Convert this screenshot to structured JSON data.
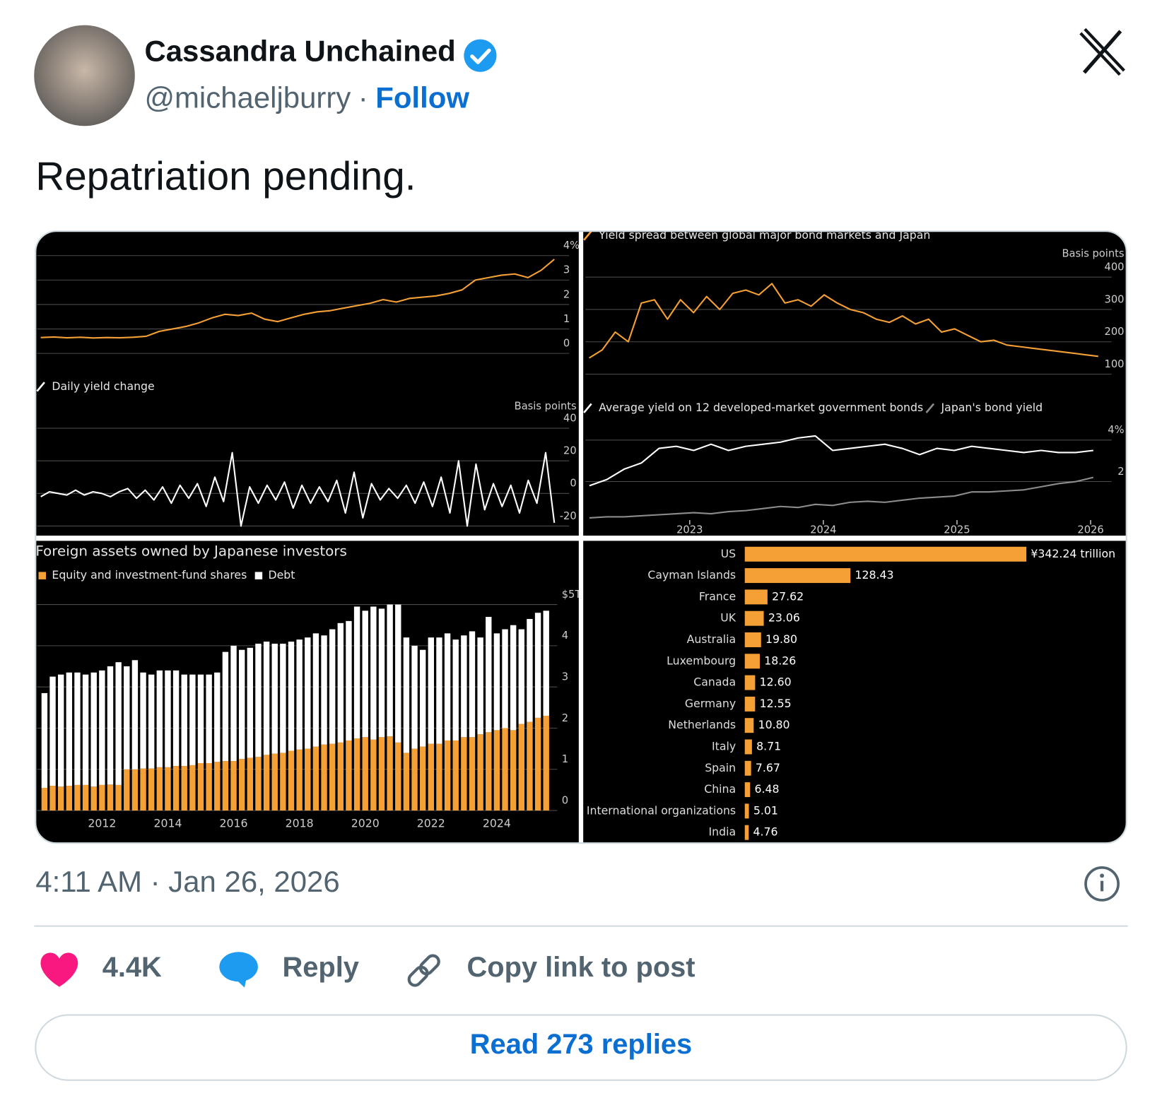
{
  "post": {
    "author": "Cassandra Unchained",
    "handle": "@michaeljburry",
    "separator": "·",
    "follow": "Follow",
    "text": "Repatriation pending.",
    "timestamp": "4:11 AM · Jan 26, 2026",
    "likes": "4.4K",
    "reply": "Reply",
    "copy_link": "Copy link to post",
    "read_replies": "Read 273 replies"
  },
  "chart_data": [
    {
      "type": "line",
      "color": "#f5a035",
      "values": [
        0.65,
        0.67,
        0.64,
        0.66,
        0.63,
        0.65,
        0.64,
        0.66,
        0.7,
        0.9,
        1.0,
        1.1,
        1.25,
        1.45,
        1.6,
        1.55,
        1.65,
        1.4,
        1.3,
        1.45,
        1.6,
        1.7,
        1.75,
        1.85,
        1.95,
        2.05,
        2.2,
        2.1,
        2.25,
        2.3,
        2.35,
        2.45,
        2.6,
        3.0,
        3.1,
        3.2,
        3.25,
        3.1,
        3.4,
        3.85
      ],
      "ylim": [
        -0.5,
        5
      ],
      "yticks": [
        0,
        1,
        2,
        3,
        {
          "value": 4,
          "label": "4%"
        }
      ],
      "grid": true
    },
    {
      "type": "line",
      "title": "Daily yield change",
      "y_label": "Basis points",
      "color": "#ffffff",
      "values": [
        -2,
        1,
        0,
        -1,
        2,
        -1,
        1,
        0,
        -2,
        1,
        3,
        -3,
        2,
        -4,
        4,
        -6,
        5,
        -3,
        6,
        -8,
        10,
        -5,
        25,
        -20,
        4,
        -6,
        5,
        -4,
        7,
        -9,
        5,
        -6,
        4,
        -5,
        8,
        -12,
        13,
        -15,
        6,
        -4,
        3,
        -3,
        5,
        -6,
        7,
        -8,
        10,
        -12,
        20,
        -20,
        18,
        -10,
        6,
        -8,
        5,
        -12,
        8,
        -6,
        25,
        -18
      ],
      "ylim": [
        -26,
        56
      ],
      "yticks": [
        -20,
        0,
        20,
        40
      ],
      "grid": true
    },
    {
      "type": "line",
      "title": "Yield spread between global major bond markets and Japan",
      "y_label": "Basis points",
      "color": "#f5a035",
      "values": [
        150,
        175,
        230,
        200,
        320,
        330,
        270,
        330,
        290,
        340,
        300,
        350,
        360,
        345,
        380,
        320,
        330,
        310,
        345,
        320,
        300,
        290,
        270,
        260,
        280,
        255,
        270,
        230,
        240,
        220,
        200,
        205,
        190,
        185,
        180,
        175,
        170,
        165,
        160,
        155
      ],
      "ylim": [
        70,
        540
      ],
      "yticks": [
        100,
        200,
        300,
        400
      ],
      "grid": true
    },
    {
      "type": "line",
      "x": [
        2022.25,
        2022.38,
        2022.51,
        2022.64,
        2022.77,
        2022.9,
        2023.03,
        2023.16,
        2023.29,
        2023.42,
        2023.55,
        2023.68,
        2023.81,
        2023.94,
        2024.07,
        2024.2,
        2024.33,
        2024.46,
        2024.59,
        2024.72,
        2024.85,
        2024.98,
        2025.11,
        2025.24,
        2025.37,
        2025.5,
        2025.63,
        2025.76,
        2025.89,
        2026.02
      ],
      "series": [
        {
          "name": "Average yield on 12 developed-market government bonds",
          "color": "#ffffff",
          "values": [
            1.8,
            2.1,
            2.6,
            2.9,
            3.6,
            3.7,
            3.5,
            3.8,
            3.5,
            3.7,
            3.8,
            3.9,
            4.1,
            4.2,
            3.5,
            3.6,
            3.7,
            3.8,
            3.6,
            3.3,
            3.6,
            3.5,
            3.7,
            3.6,
            3.5,
            3.4,
            3.5,
            3.4,
            3.4,
            3.5
          ]
        },
        {
          "name": "Japan's bond yield",
          "color": "#8c8c8c",
          "values": [
            0.25,
            0.3,
            0.3,
            0.35,
            0.4,
            0.45,
            0.5,
            0.45,
            0.55,
            0.6,
            0.7,
            0.8,
            0.75,
            0.9,
            0.85,
            1.0,
            1.05,
            1.0,
            1.1,
            1.2,
            1.25,
            1.3,
            1.5,
            1.5,
            1.55,
            1.6,
            1.75,
            1.9,
            2.0,
            2.2
          ]
        }
      ],
      "xlim": [
        2022.22,
        2026.24
      ],
      "xticks": [
        2023,
        2024,
        2025,
        2026
      ],
      "ylim": [
        -0.6,
        5.9
      ],
      "yticks": [
        2,
        {
          "value": 4,
          "label": "4%"
        }
      ],
      "grid": true
    },
    {
      "type": "bar",
      "stacked": true,
      "title": "Foreign assets owned by Japanese investors",
      "categories": [
        null,
        null,
        null,
        null,
        null,
        null,
        null,
        "2012",
        null,
        null,
        null,
        null,
        null,
        null,
        null,
        "2014",
        null,
        null,
        null,
        null,
        null,
        null,
        null,
        "2016",
        null,
        null,
        null,
        null,
        null,
        null,
        null,
        "2018",
        null,
        null,
        null,
        null,
        null,
        null,
        null,
        "2020",
        null,
        null,
        null,
        null,
        null,
        null,
        null,
        "2022",
        null,
        null,
        null,
        null,
        null,
        null,
        null,
        "2024",
        null,
        null,
        null,
        null,
        null,
        null
      ],
      "series": [
        {
          "name": "Equity and investment-fund shares",
          "color": "#f5a035",
          "values": [
            0.55,
            0.6,
            0.58,
            0.6,
            0.62,
            0.62,
            0.58,
            0.62,
            0.63,
            0.62,
            1.0,
            1.0,
            1.02,
            1.02,
            1.05,
            1.05,
            1.08,
            1.08,
            1.1,
            1.15,
            1.15,
            1.18,
            1.2,
            1.2,
            1.25,
            1.28,
            1.3,
            1.35,
            1.38,
            1.4,
            1.45,
            1.48,
            1.5,
            1.55,
            1.6,
            1.62,
            1.65,
            1.7,
            1.75,
            1.78,
            1.72,
            1.78,
            1.8,
            1.65,
            1.4,
            1.5,
            1.55,
            1.62,
            1.62,
            1.7,
            1.7,
            1.78,
            1.78,
            1.85,
            1.9,
            1.95,
            2.0,
            1.95,
            2.1,
            2.15,
            2.25,
            2.3
          ]
        },
        {
          "name": "Debt",
          "color": "#ffffff",
          "values": [
            2.3,
            2.65,
            2.72,
            2.75,
            2.73,
            2.68,
            2.77,
            2.78,
            2.87,
            2.98,
            2.5,
            2.65,
            2.33,
            2.28,
            2.35,
            2.35,
            2.32,
            2.22,
            2.2,
            2.15,
            2.15,
            2.17,
            2.65,
            2.8,
            2.65,
            2.67,
            2.75,
            2.75,
            2.67,
            2.65,
            2.65,
            2.67,
            2.7,
            2.75,
            2.65,
            2.78,
            2.9,
            2.9,
            3.2,
            3.07,
            3.23,
            3.12,
            3.2,
            3.35,
            2.8,
            2.5,
            2.35,
            2.58,
            2.58,
            2.6,
            2.45,
            2.47,
            2.57,
            2.35,
            2.8,
            2.35,
            2.4,
            2.55,
            2.3,
            2.5,
            2.55,
            2.55
          ]
        }
      ],
      "ylim": [
        0,
        5.5
      ],
      "yticks": [
        0,
        1,
        2,
        3,
        4,
        {
          "value": 5,
          "label": "$5T"
        }
      ],
      "grid": true
    },
    {
      "type": "bar",
      "orientation": "horizontal",
      "color": "#f5a035",
      "categories": [
        "US",
        "Cayman Islands",
        "France",
        "UK",
        "Australia",
        "Luxembourg",
        "Canada",
        "Germany",
        "Netherlands",
        "Italy",
        "Spain",
        "China",
        "International organizations",
        "India"
      ],
      "values": [
        342.24,
        128.43,
        27.62,
        23.06,
        19.8,
        18.26,
        12.6,
        12.55,
        10.8,
        8.71,
        7.67,
        6.48,
        5.01,
        4.76
      ],
      "value_labels": [
        "¥342.24 trillion",
        "128.43",
        "27.62",
        "23.06",
        "19.80",
        "18.26",
        "12.60",
        "12.55",
        "10.80",
        "8.71",
        "7.67",
        "6.48",
        "5.01",
        "4.76"
      ]
    }
  ]
}
